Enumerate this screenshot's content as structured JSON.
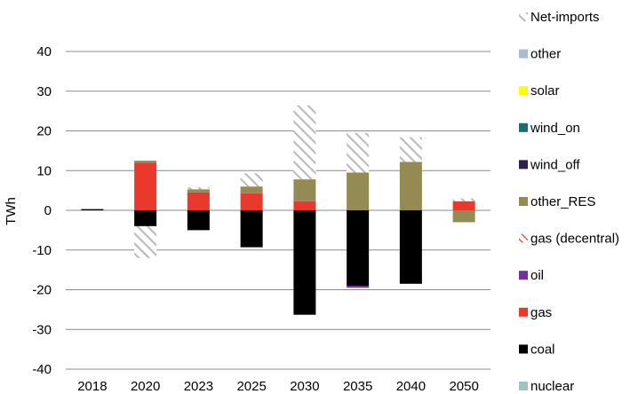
{
  "chart_data": {
    "type": "bar",
    "stacked": true,
    "ylabel": "TWh",
    "xlabel": "",
    "title": "",
    "ylim": [
      -40,
      40
    ],
    "yticks": [
      40,
      30,
      20,
      10,
      0,
      -10,
      -20,
      -30,
      -40
    ],
    "ytick_labels": [
      "40",
      "30",
      "20",
      "10",
      "0",
      "-10",
      "-20",
      "-30",
      "-40"
    ],
    "categories": [
      "2018",
      "2020",
      "2023",
      "2025",
      "2030",
      "2035",
      "2040",
      "2050"
    ],
    "grid": true,
    "legend_position": "right",
    "series": [
      {
        "name": "nuclear",
        "color": "#9dc3c6",
        "pattern": "solid",
        "values": [
          0,
          0,
          0,
          0,
          0,
          0,
          0,
          0
        ]
      },
      {
        "name": "coal",
        "color": "#000000",
        "pattern": "solid",
        "values": [
          0.3,
          -4.0,
          -5.0,
          -9.3,
          -26.3,
          -19.0,
          -18.5,
          0
        ]
      },
      {
        "name": "gas",
        "color": "#e8392c",
        "pattern": "solid",
        "values": [
          0,
          12.0,
          4.5,
          4.3,
          2.3,
          0,
          0,
          2.3
        ]
      },
      {
        "name": "oil",
        "color": "#7030a0",
        "pattern": "solid",
        "values": [
          0,
          0,
          0,
          0,
          0,
          -0.5,
          0,
          0
        ]
      },
      {
        "name": "gas (decentral)",
        "color": "#e8392c",
        "pattern": "hatch",
        "values": [
          0,
          0,
          0,
          0,
          0,
          0,
          0,
          0
        ]
      },
      {
        "name": "other_RES",
        "color": "#948a54",
        "pattern": "solid",
        "values": [
          0,
          0.5,
          0.8,
          1.7,
          5.5,
          9.5,
          12.2,
          -3.0
        ]
      },
      {
        "name": "wind_off",
        "color": "#2e1d4e",
        "pattern": "solid",
        "values": [
          0,
          0,
          0,
          0,
          0,
          0,
          0,
          0
        ]
      },
      {
        "name": "wind_on",
        "color": "#1f6b6e",
        "pattern": "solid",
        "values": [
          0,
          0,
          0,
          0,
          0,
          0,
          0,
          0
        ]
      },
      {
        "name": "solar",
        "color": "#ffff00",
        "pattern": "solid",
        "values": [
          0,
          0,
          0,
          0,
          0,
          0,
          0,
          0
        ]
      },
      {
        "name": "other",
        "color": "#aabbd8",
        "pattern": "solid",
        "values": [
          0,
          0,
          0,
          0,
          0,
          0,
          0,
          0
        ]
      },
      {
        "name": "Net-imports",
        "color": "#b8b8b8",
        "pattern": "hatch",
        "values": [
          0,
          -8.0,
          0.5,
          3.3,
          18.6,
          10.0,
          6.2,
          0.7
        ]
      }
    ]
  }
}
